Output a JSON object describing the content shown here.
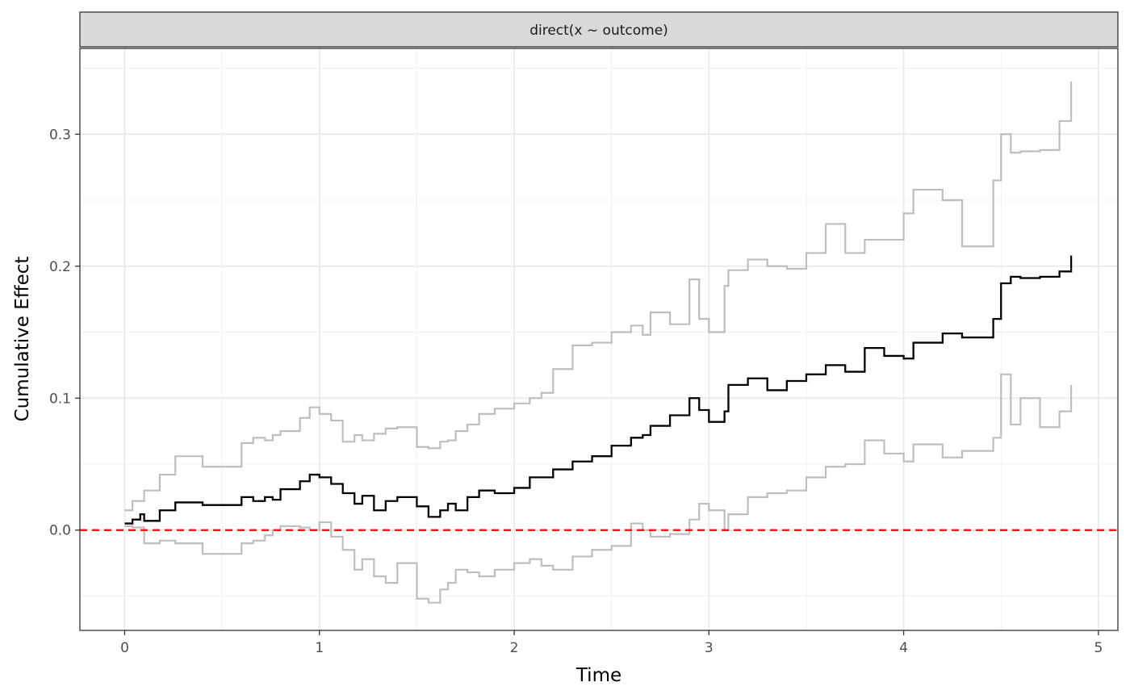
{
  "chart_data": {
    "type": "line",
    "panel_title": "direct(x ~ outcome)",
    "xlabel": "Time",
    "ylabel": "Cumulative Effect",
    "xlim": [
      -0.23,
      5.1
    ],
    "ylim": [
      -0.076,
      0.365
    ],
    "x_ticks": [
      0,
      1,
      2,
      3,
      4,
      5
    ],
    "x_tick_labels": [
      "0",
      "1",
      "2",
      "3",
      "4",
      "5"
    ],
    "y_ticks": [
      0.0,
      0.1,
      0.2,
      0.3
    ],
    "y_tick_labels": [
      "0.0",
      "0.1",
      "0.2",
      "0.3"
    ],
    "grid": true,
    "reference_line": {
      "y": 0,
      "style": "dashed",
      "color": "#ff0000"
    },
    "colors": {
      "estimate": "#000000",
      "bands": "#bebebe",
      "strip_bg": "#d9d9d9"
    },
    "series": [
      {
        "role": "estimate",
        "x": [
          0,
          0.04,
          0.08,
          0.1,
          0.18,
          0.26,
          0.4,
          0.6,
          0.66,
          0.72,
          0.76,
          0.8,
          0.9,
          0.95,
          1.0,
          1.06,
          1.12,
          1.18,
          1.22,
          1.28,
          1.34,
          1.4,
          1.5,
          1.56,
          1.62,
          1.66,
          1.7,
          1.76,
          1.82,
          1.9,
          2.0,
          2.08,
          2.14,
          2.2,
          2.3,
          2.4,
          2.5,
          2.6,
          2.66,
          2.7,
          2.8,
          2.9,
          2.95,
          3.0,
          3.08,
          3.1,
          3.2,
          3.3,
          3.4,
          3.5,
          3.6,
          3.7,
          3.8,
          3.9,
          4.0,
          4.05,
          4.2,
          4.3,
          4.46,
          4.5,
          4.55,
          4.6,
          4.7,
          4.8,
          4.86
        ],
        "y": [
          0.005,
          0.008,
          0.012,
          0.007,
          0.015,
          0.021,
          0.019,
          0.025,
          0.022,
          0.025,
          0.023,
          0.031,
          0.037,
          0.042,
          0.04,
          0.035,
          0.028,
          0.02,
          0.026,
          0.015,
          0.022,
          0.025,
          0.018,
          0.01,
          0.015,
          0.02,
          0.015,
          0.025,
          0.03,
          0.028,
          0.032,
          0.04,
          0.04,
          0.046,
          0.052,
          0.056,
          0.064,
          0.07,
          0.072,
          0.079,
          0.087,
          0.1,
          0.091,
          0.082,
          0.09,
          0.11,
          0.115,
          0.106,
          0.113,
          0.118,
          0.125,
          0.12,
          0.138,
          0.132,
          0.13,
          0.142,
          0.149,
          0.146,
          0.16,
          0.187,
          0.192,
          0.191,
          0.192,
          0.196,
          0.208
        ]
      },
      {
        "role": "upper-band",
        "x": [
          0,
          0.04,
          0.1,
          0.18,
          0.26,
          0.4,
          0.6,
          0.66,
          0.72,
          0.76,
          0.8,
          0.9,
          0.95,
          1.0,
          1.06,
          1.12,
          1.18,
          1.22,
          1.28,
          1.34,
          1.4,
          1.5,
          1.56,
          1.62,
          1.66,
          1.7,
          1.76,
          1.82,
          1.9,
          2.0,
          2.08,
          2.14,
          2.2,
          2.3,
          2.4,
          2.5,
          2.6,
          2.66,
          2.7,
          2.8,
          2.9,
          2.95,
          3.0,
          3.08,
          3.1,
          3.2,
          3.3,
          3.4,
          3.5,
          3.6,
          3.7,
          3.8,
          3.9,
          4.0,
          4.05,
          4.2,
          4.3,
          4.46,
          4.5,
          4.55,
          4.6,
          4.7,
          4.8,
          4.86
        ],
        "y": [
          0.015,
          0.022,
          0.03,
          0.042,
          0.056,
          0.048,
          0.066,
          0.07,
          0.068,
          0.072,
          0.075,
          0.085,
          0.093,
          0.088,
          0.083,
          0.067,
          0.072,
          0.068,
          0.073,
          0.077,
          0.078,
          0.063,
          0.062,
          0.067,
          0.068,
          0.075,
          0.08,
          0.088,
          0.092,
          0.096,
          0.1,
          0.104,
          0.122,
          0.14,
          0.142,
          0.15,
          0.155,
          0.148,
          0.165,
          0.156,
          0.19,
          0.16,
          0.15,
          0.185,
          0.197,
          0.205,
          0.2,
          0.198,
          0.21,
          0.232,
          0.21,
          0.22,
          0.22,
          0.24,
          0.258,
          0.25,
          0.215,
          0.265,
          0.3,
          0.286,
          0.287,
          0.288,
          0.31,
          0.34
        ]
      },
      {
        "role": "lower-band",
        "x": [
          0,
          0.04,
          0.1,
          0.18,
          0.26,
          0.4,
          0.6,
          0.66,
          0.72,
          0.76,
          0.8,
          0.9,
          0.95,
          1.0,
          1.06,
          1.12,
          1.18,
          1.22,
          1.28,
          1.34,
          1.4,
          1.5,
          1.56,
          1.62,
          1.66,
          1.7,
          1.76,
          1.82,
          1.9,
          2.0,
          2.08,
          2.14,
          2.2,
          2.3,
          2.4,
          2.5,
          2.6,
          2.66,
          2.7,
          2.8,
          2.9,
          2.95,
          3.0,
          3.08,
          3.1,
          3.2,
          3.3,
          3.4,
          3.5,
          3.6,
          3.7,
          3.8,
          3.9,
          4.0,
          4.05,
          4.2,
          4.3,
          4.46,
          4.5,
          4.55,
          4.6,
          4.7,
          4.8,
          4.86
        ],
        "y": [
          0.003,
          0.002,
          -0.01,
          -0.008,
          -0.01,
          -0.018,
          -0.01,
          -0.008,
          -0.004,
          0.0,
          0.003,
          0.002,
          0.0,
          0.006,
          -0.005,
          -0.015,
          -0.03,
          -0.022,
          -0.035,
          -0.04,
          -0.025,
          -0.052,
          -0.055,
          -0.045,
          -0.04,
          -0.03,
          -0.032,
          -0.035,
          -0.03,
          -0.025,
          -0.022,
          -0.027,
          -0.03,
          -0.02,
          -0.015,
          -0.012,
          0.005,
          0.0,
          -0.005,
          -0.003,
          0.008,
          0.02,
          0.015,
          0.0,
          0.012,
          0.025,
          0.028,
          0.03,
          0.04,
          0.048,
          0.05,
          0.068,
          0.058,
          0.052,
          0.065,
          0.055,
          0.06,
          0.07,
          0.118,
          0.08,
          0.1,
          0.078,
          0.09,
          0.11
        ]
      }
    ]
  }
}
